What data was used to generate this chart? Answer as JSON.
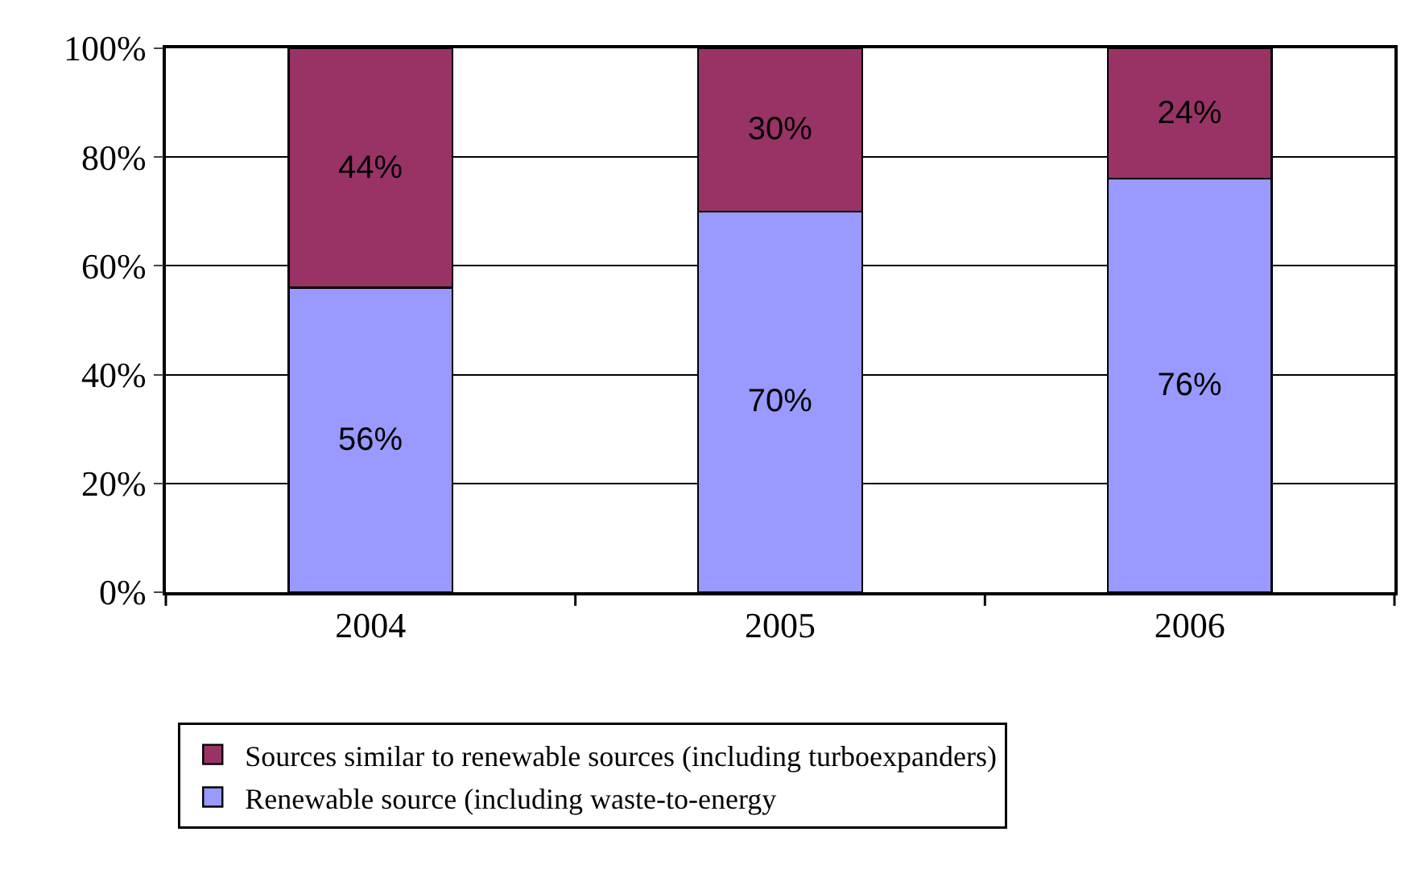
{
  "chart_data": {
    "type": "bar",
    "stacked": true,
    "categories": [
      "2004",
      "2005",
      "2006"
    ],
    "series": [
      {
        "name": "Renewable source (including waste-to-energy",
        "color": "#9999ff",
        "values": [
          56,
          70,
          76
        ],
        "value_labels": [
          "56%",
          "70%",
          "76%"
        ]
      },
      {
        "name": "Sources similar to renewable sources (including turboexpanders)",
        "color": "#993366",
        "values": [
          44,
          30,
          24
        ],
        "value_labels": [
          "44%",
          "30%",
          "24%"
        ]
      }
    ],
    "ylim": [
      0,
      100
    ],
    "yticks": [
      {
        "value": 0,
        "label": "0%"
      },
      {
        "value": 20,
        "label": "20%"
      },
      {
        "value": 40,
        "label": "40%"
      },
      {
        "value": 60,
        "label": "60%"
      },
      {
        "value": 80,
        "label": "80%"
      },
      {
        "value": 100,
        "label": "100%"
      }
    ],
    "grid": "y",
    "legend": "bottom"
  }
}
